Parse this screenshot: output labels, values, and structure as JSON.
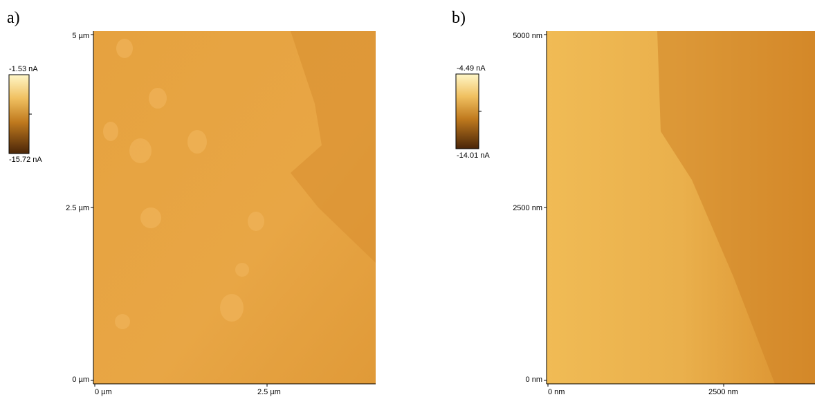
{
  "panels": [
    {
      "label": "a)",
      "colorbar": {
        "max": "-1.53 nA",
        "min": "-15.72 nA"
      },
      "y_ticks": [
        "5 µm",
        "2.5 µm",
        "0 µm"
      ],
      "x_ticks": [
        "0 µm",
        "2.5 µm"
      ]
    },
    {
      "label": "b)",
      "colorbar": {
        "max": "-4.49 nA",
        "min": "-14.01 nA"
      },
      "y_ticks": [
        "5000 nm",
        "2500 nm",
        "0 nm"
      ],
      "x_ticks": [
        "0 nm",
        "2500 nm"
      ]
    }
  ]
}
